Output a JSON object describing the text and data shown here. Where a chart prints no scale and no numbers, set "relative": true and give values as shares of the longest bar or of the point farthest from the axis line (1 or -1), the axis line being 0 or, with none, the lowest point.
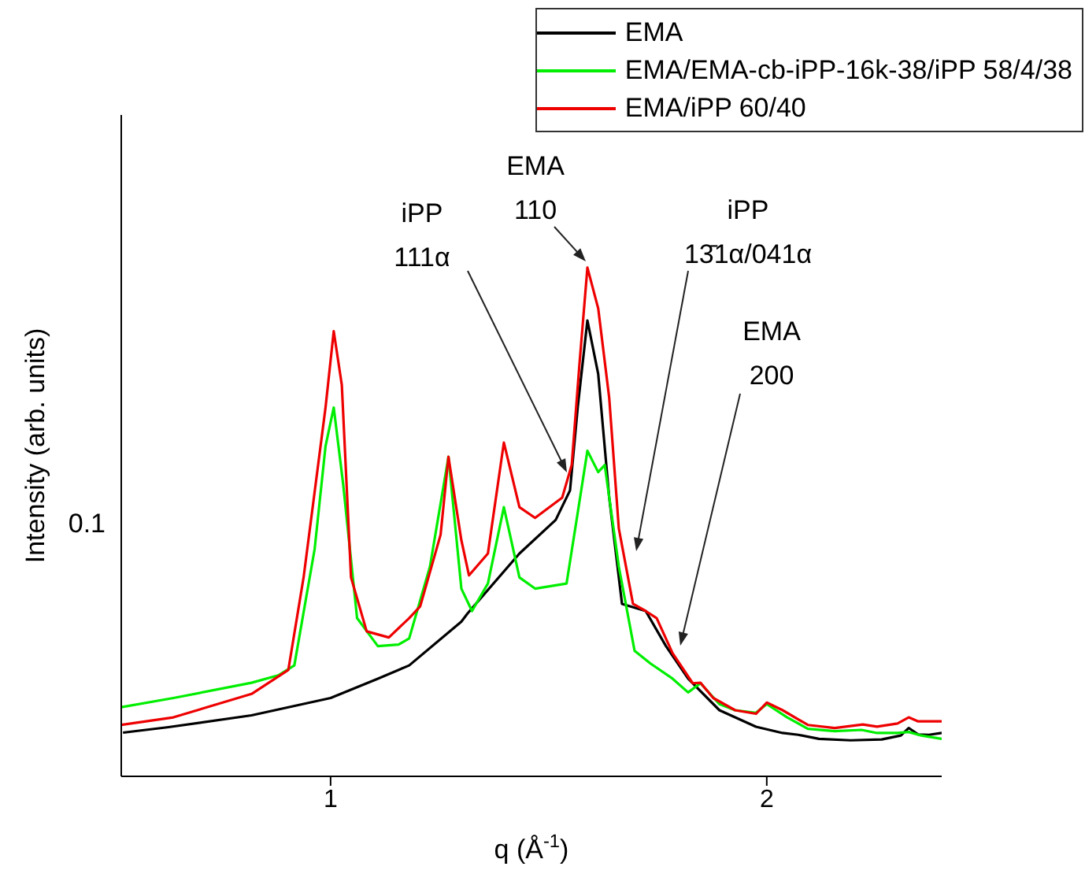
{
  "chart_data": {
    "type": "line",
    "relative": true,
    "xlabel": "q (Å$^{-1}$)",
    "ylabel": "Intensity (arb. units)",
    "log": "x",
    "legend": "top right",
    "marker": "none",
    "line_style": "solid",
    "xlim": [
      0.717,
      2.641
    ],
    "xticks": [
      1,
      2
    ],
    "series": [
      {
        "name": "EMA",
        "color": "#000000",
        "x": [
          0.719,
          0.773,
          0.882,
          1.0,
          1.078,
          1.133,
          1.231,
          1.243,
          1.35,
          1.43,
          1.463,
          1.481,
          1.504,
          1.53,
          1.557,
          1.589,
          1.65,
          1.704,
          1.765,
          1.855,
          1.966,
          2.051,
          2.103,
          2.173,
          2.285,
          2.401,
          2.475,
          2.506,
          2.544,
          2.588,
          2.641
        ],
        "values": [
          0.0859,
          0.0967,
          0.12,
          0.154,
          0.192,
          0.218,
          0.304,
          0.32,
          0.438,
          0.504,
          0.562,
          0.725,
          0.896,
          0.791,
          0.548,
          0.339,
          0.325,
          0.256,
          0.192,
          0.13,
          0.0976,
          0.0852,
          0.0816,
          0.0736,
          0.0708,
          0.0725,
          0.0802,
          0.0951,
          0.0824,
          0.0816,
          0.0852
        ]
      },
      {
        "name": "EMA/EMA-cb-iPP-16k-38/iPP 58/4/38",
        "color": "#00ee00",
        "x": [
          0.717,
          0.779,
          0.882,
          0.921,
          0.944,
          0.975,
          0.992,
          1.005,
          1.02,
          1.043,
          1.078,
          1.114,
          1.133,
          1.171,
          1.206,
          1.231,
          1.252,
          1.284,
          1.317,
          1.35,
          1.384,
          1.455,
          1.481,
          1.504,
          1.53,
          1.546,
          1.581,
          1.621,
          1.662,
          1.722,
          1.765,
          1.8,
          1.855,
          1.902,
          1.966,
          2.0,
          2.066,
          2.135,
          2.228,
          2.325,
          2.383,
          2.462,
          2.506,
          2.557,
          2.641
        ],
        "values": [
          0.136,
          0.154,
          0.184,
          0.199,
          0.218,
          0.447,
          0.649,
          0.725,
          0.576,
          0.311,
          0.256,
          0.259,
          0.271,
          0.412,
          0.628,
          0.369,
          0.325,
          0.379,
          0.529,
          0.391,
          0.369,
          0.379,
          0.518,
          0.64,
          0.598,
          0.612,
          0.412,
          0.247,
          0.222,
          0.192,
          0.165,
          0.183,
          0.142,
          0.13,
          0.125,
          0.142,
          0.116,
          0.0934,
          0.0889,
          0.0913,
          0.0852,
          0.0852,
          0.0873,
          0.0802,
          0.0736
        ]
      },
      {
        "name": "EMA/iPP 60/40",
        "color": "#ee0000",
        "x": [
          0.717,
          0.779,
          0.882,
          0.935,
          0.958,
          0.992,
          1.005,
          1.018,
          1.033,
          1.059,
          1.097,
          1.133,
          1.153,
          1.191,
          1.206,
          1.231,
          1.246,
          1.284,
          1.317,
          1.35,
          1.384,
          1.445,
          1.467,
          1.485,
          1.504,
          1.53,
          1.557,
          1.581,
          1.617,
          1.65,
          1.679,
          1.722,
          1.778,
          1.8,
          1.837,
          1.902,
          1.966,
          2.0,
          2.051,
          2.135,
          2.228,
          2.33,
          2.383,
          2.462,
          2.506,
          2.544,
          2.641
        ],
        "values": [
          0.101,
          0.116,
          0.162,
          0.209,
          0.391,
          0.725,
          0.875,
          0.769,
          0.391,
          0.285,
          0.273,
          0.311,
          0.334,
          0.475,
          0.628,
          0.464,
          0.395,
          0.438,
          0.656,
          0.529,
          0.508,
          0.548,
          0.612,
          0.809,
          1,
          0.92,
          0.744,
          0.487,
          0.339,
          0.325,
          0.311,
          0.242,
          0.183,
          0.184,
          0.154,
          0.13,
          0.123,
          0.145,
          0.13,
          0.101,
          0.0951,
          0.102,
          0.0976,
          0.104,
          0.116,
          0.108,
          0.108
        ]
      }
    ],
    "annotations": [
      "iPP\n111α",
      "EMA\n110",
      "iPP\n13̄1α/041α",
      "EMA\n200",
      "0.1"
    ]
  }
}
